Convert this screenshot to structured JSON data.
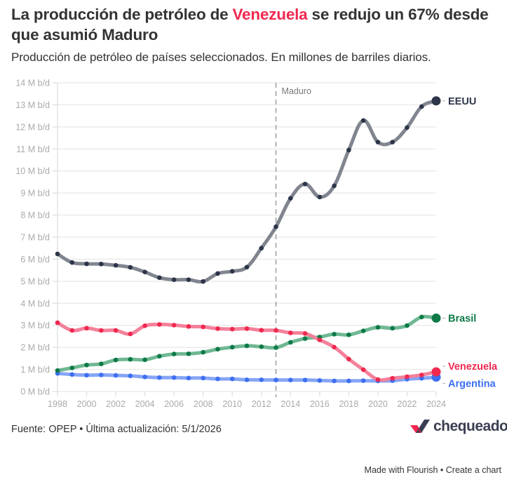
{
  "header": {
    "title_pre": "La producción de petróleo de ",
    "title_highlight": "Venezuela",
    "title_post": " se redujo un 67% desde que asumió Maduro",
    "subtitle": "Producción de petróleo de países seleccionados. En millones de barriles diarios."
  },
  "footer": {
    "source": "Fuente: OPEP • Última actualización: 5/1/2026",
    "logo_text": "chequeado",
    "made_with": "Made with Flourish",
    "separator": " • ",
    "create_chart": "Create a chart"
  },
  "chart_data": {
    "type": "line",
    "title": "La producción de petróleo de Venezuela se redujo un 67% desde que asumió Maduro",
    "subtitle": "Producción de petróleo de países seleccionados. En millones de barriles diarios.",
    "xlabel": "",
    "ylabel": "",
    "x": [
      1998,
      1999,
      2000,
      2001,
      2002,
      2003,
      2004,
      2005,
      2006,
      2007,
      2008,
      2009,
      2010,
      2011,
      2012,
      2013,
      2014,
      2015,
      2016,
      2017,
      2018,
      2019,
      2020,
      2021,
      2022,
      2023,
      2024
    ],
    "xlim": [
      1998,
      2024
    ],
    "ylim": [
      0,
      14
    ],
    "x_ticks": [
      1998,
      2000,
      2002,
      2004,
      2006,
      2008,
      2010,
      2012,
      2014,
      2016,
      2018,
      2020,
      2022,
      2024
    ],
    "x_tick_labels": [
      "1998",
      "2000",
      "2002",
      "2004",
      "2006",
      "2008",
      "2010",
      "2012",
      "2014",
      "2016",
      "2018",
      "2020",
      "2022",
      "2024"
    ],
    "y_ticks": [
      0,
      1,
      2,
      3,
      4,
      5,
      6,
      7,
      8,
      9,
      10,
      11,
      12,
      13,
      14
    ],
    "y_tick_labels": [
      "0 M b/d",
      "1 M b/d",
      "2 M b/d",
      "3 M b/d",
      "4 M b/d",
      "5 M b/d",
      "6 M b/d",
      "7 M b/d",
      "8 M b/d",
      "9 M b/d",
      "10 M b/d",
      "11 M b/d",
      "12 M b/d",
      "13 M b/d",
      "14 M b/d"
    ],
    "grid": true,
    "legend": "direct labels at right end of lines",
    "annotations": [
      {
        "type": "vertical-dashed-line",
        "x": 2013,
        "label": "Maduro"
      }
    ],
    "series": [
      {
        "name": "EEUU",
        "color": "#2d3549",
        "line_color": "#80858f",
        "values": [
          6.24,
          5.85,
          5.79,
          5.78,
          5.72,
          5.63,
          5.42,
          5.16,
          5.07,
          5.07,
          4.99,
          5.35,
          5.45,
          5.64,
          6.5,
          7.47,
          8.76,
          9.41,
          8.82,
          9.33,
          10.95,
          12.29,
          11.31,
          11.31,
          11.97,
          12.92,
          13.18
        ]
      },
      {
        "name": "Brasil",
        "color": "#0e7a47",
        "line_color": "#6fb893",
        "values": [
          0.95,
          1.07,
          1.2,
          1.25,
          1.43,
          1.46,
          1.44,
          1.6,
          1.7,
          1.71,
          1.78,
          1.92,
          2.01,
          2.07,
          2.03,
          1.99,
          2.23,
          2.4,
          2.47,
          2.6,
          2.57,
          2.75,
          2.91,
          2.87,
          2.99,
          3.38,
          3.33
        ]
      },
      {
        "name": "Venezuela",
        "color": "#f0284f",
        "line_color": "#f4809a",
        "values": [
          3.12,
          2.77,
          2.87,
          2.77,
          2.77,
          2.61,
          2.98,
          3.04,
          3.01,
          2.95,
          2.93,
          2.85,
          2.83,
          2.85,
          2.78,
          2.77,
          2.66,
          2.63,
          2.34,
          2.01,
          1.47,
          0.99,
          0.54,
          0.6,
          0.67,
          0.75,
          0.89
        ]
      },
      {
        "name": "Argentina",
        "color": "#3d6ff0",
        "line_color": "#86a5f5",
        "values": [
          0.82,
          0.77,
          0.74,
          0.75,
          0.73,
          0.71,
          0.66,
          0.63,
          0.63,
          0.61,
          0.61,
          0.57,
          0.57,
          0.53,
          0.53,
          0.52,
          0.52,
          0.52,
          0.5,
          0.48,
          0.48,
          0.49,
          0.48,
          0.49,
          0.56,
          0.6,
          0.65
        ]
      }
    ]
  }
}
